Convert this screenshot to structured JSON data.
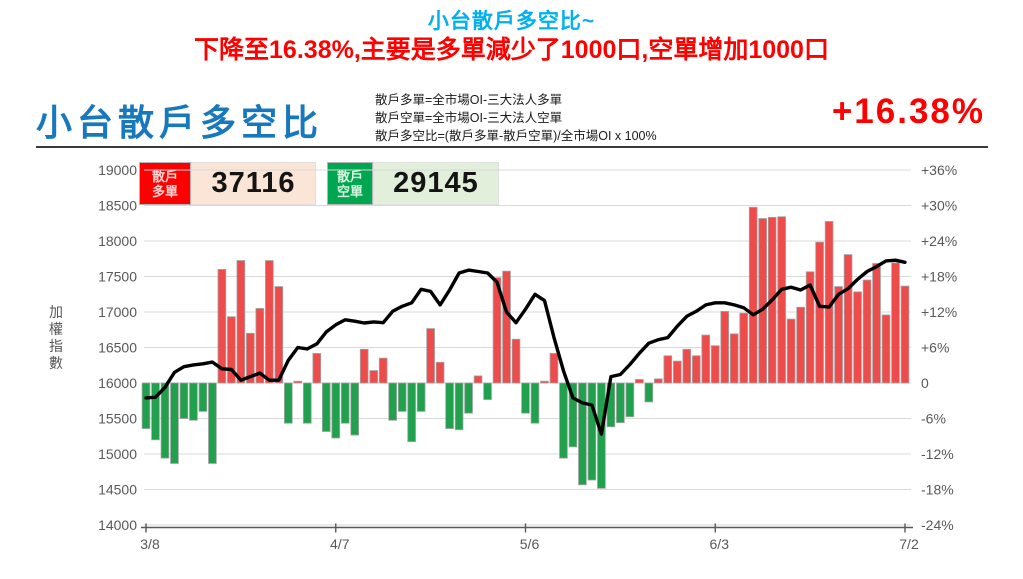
{
  "page": {
    "title_line1": "小台散戶多空比~",
    "title_line2": "下降至16.38%,主要是多單減少了1000口,空單增加1000口"
  },
  "header": {
    "title": "小台散戶多空比",
    "formulas": [
      "散戶多單=全市場OI-三大法人多單",
      "散戶空單=全市場OI-三大法人空單",
      "散戶多空比=(散戶多單-散戶空單)/全市場OI x 100%"
    ],
    "ratio_value": "+16.38%"
  },
  "legend": {
    "long": {
      "label_line1": "散戶",
      "label_line2": "多單",
      "value": "37116"
    },
    "short": {
      "label_line1": "散戶",
      "label_line2": "空單",
      "value": "29145"
    }
  },
  "chart_data": {
    "type": "bar+line",
    "title": "小台散戶多空比",
    "left_axis": {
      "title": "加權指數",
      "min": 14000,
      "max": 19000,
      "ticks": [
        19000,
        18500,
        18000,
        17500,
        17000,
        16500,
        16000,
        15500,
        15000,
        14500,
        14000
      ]
    },
    "right_axis": {
      "min": -24,
      "max": 36,
      "ticks": [
        "+36%",
        "+30%",
        "+24%",
        "+18%",
        "+12%",
        "+6%",
        "0",
        "-6%",
        "-12%",
        "-18%",
        "-24%"
      ],
      "tick_values": [
        36,
        30,
        24,
        18,
        12,
        6,
        0,
        -6,
        -12,
        -18,
        -24
      ]
    },
    "x_axis": {
      "tick_labels": [
        "3/8",
        "4/7",
        "5/6",
        "6/3",
        "7/2"
      ],
      "tick_indices": [
        0,
        20,
        40,
        60,
        80
      ]
    },
    "grid": true,
    "bars": {
      "name": "散戶多空比(%)",
      "positive_color": "#ee4b4b",
      "negative_color": "#21a04d",
      "border_color": "#a3a3a3",
      "values": [
        -7.7,
        -9.6,
        -12.7,
        -13.6,
        -6.0,
        -6.3,
        -4.8,
        -13.6,
        19.2,
        11.2,
        20.7,
        8.4,
        12.6,
        20.7,
        16.3,
        -6.8,
        0.3,
        -6.8,
        5.0,
        -8.2,
        -9.3,
        -6.8,
        -8.8,
        5.7,
        2.1,
        4.2,
        -6.3,
        -4.8,
        -9.9,
        -4.8,
        9.2,
        3.5,
        -7.7,
        -7.9,
        -5.1,
        1.2,
        -2.8,
        17.8,
        18.9,
        7.4,
        -5.1,
        -6.8,
        0.3,
        5.0,
        -12.7,
        -10.8,
        -17.2,
        -16.4,
        -17.8,
        -7.4,
        -6.7,
        -5.7,
        0.6,
        -3.2,
        0.7,
        4.6,
        3.7,
        5.7,
        4.6,
        8.1,
        6.3,
        12.1,
        8.3,
        11.8,
        29.7,
        27.8,
        28.0,
        28.1,
        10.8,
        12.8,
        18.8,
        23.8,
        27.3,
        16.3,
        21.7,
        15.4,
        17.4,
        20.2,
        11.5,
        20.3,
        16.38
      ]
    },
    "line": {
      "name": "加權指數",
      "color": "#000000",
      "values": [
        15790,
        15800,
        15940,
        16150,
        16230,
        16255,
        16270,
        16295,
        16200,
        16190,
        16040,
        16090,
        16140,
        16040,
        16040,
        16320,
        16500,
        16480,
        16550,
        16720,
        16820,
        16890,
        16870,
        16845,
        16860,
        16850,
        17010,
        17080,
        17130,
        17320,
        17290,
        17100,
        17310,
        17550,
        17590,
        17570,
        17550,
        17420,
        17000,
        16850,
        17040,
        17250,
        17160,
        16640,
        16170,
        15790,
        15720,
        15690,
        15280,
        16090,
        16120,
        16260,
        16420,
        16560,
        16610,
        16640,
        16800,
        16940,
        17010,
        17100,
        17130,
        17130,
        17100,
        17060,
        16960,
        17040,
        17170,
        17320,
        17350,
        17310,
        17380,
        17080,
        17070,
        17250,
        17330,
        17460,
        17570,
        17640,
        17720,
        17730,
        17700
      ]
    }
  }
}
